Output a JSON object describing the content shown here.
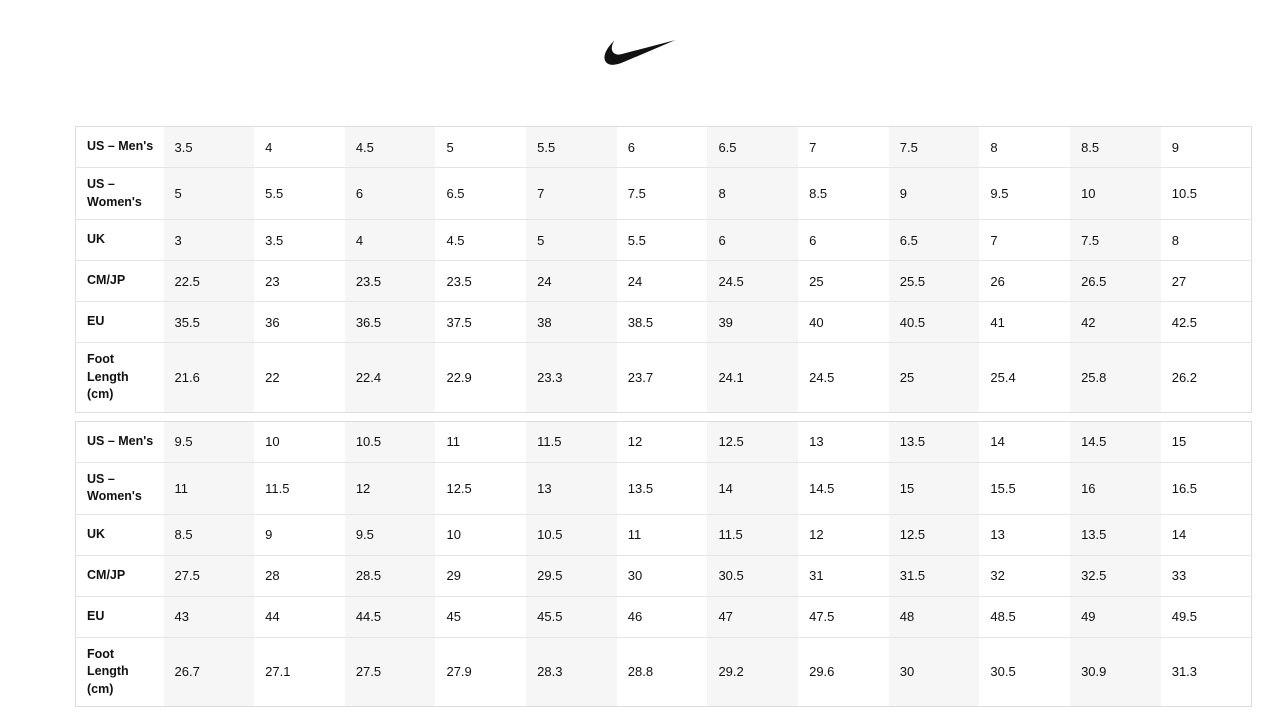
{
  "logo": {
    "icon": "nike-swoosh",
    "color": "#111111"
  },
  "colors": {
    "page_background": "#ffffff",
    "stripe": "#f6f6f6",
    "row_border": "#e5e5e5",
    "table_border": "#dddddd",
    "text": "#111111"
  },
  "tables": [
    {
      "rows": [
        {
          "label": "US – Men's",
          "values": [
            "3.5",
            "4",
            "4.5",
            "5",
            "5.5",
            "6",
            "6.5",
            "7",
            "7.5",
            "8",
            "8.5",
            "9"
          ]
        },
        {
          "label": "US – Women's",
          "values": [
            "5",
            "5.5",
            "6",
            "6.5",
            "7",
            "7.5",
            "8",
            "8.5",
            "9",
            "9.5",
            "10",
            "10.5"
          ]
        },
        {
          "label": "UK",
          "values": [
            "3",
            "3.5",
            "4",
            "4.5",
            "5",
            "5.5",
            "6",
            "6",
            "6.5",
            "7",
            "7.5",
            "8"
          ]
        },
        {
          "label": "CM/JP",
          "values": [
            "22.5",
            "23",
            "23.5",
            "23.5",
            "24",
            "24",
            "24.5",
            "25",
            "25.5",
            "26",
            "26.5",
            "27"
          ]
        },
        {
          "label": "EU",
          "values": [
            "35.5",
            "36",
            "36.5",
            "37.5",
            "38",
            "38.5",
            "39",
            "40",
            "40.5",
            "41",
            "42",
            "42.5"
          ]
        },
        {
          "label": "Foot Length (cm)",
          "values": [
            "21.6",
            "22",
            "22.4",
            "22.9",
            "23.3",
            "23.7",
            "24.1",
            "24.5",
            "25",
            "25.4",
            "25.8",
            "26.2"
          ]
        }
      ]
    },
    {
      "rows": [
        {
          "label": "US – Men's",
          "values": [
            "9.5",
            "10",
            "10.5",
            "11",
            "11.5",
            "12",
            "12.5",
            "13",
            "13.5",
            "14",
            "14.5",
            "15"
          ]
        },
        {
          "label": "US – Women's",
          "values": [
            "11",
            "11.5",
            "12",
            "12.5",
            "13",
            "13.5",
            "14",
            "14.5",
            "15",
            "15.5",
            "16",
            "16.5"
          ]
        },
        {
          "label": "UK",
          "values": [
            "8.5",
            "9",
            "9.5",
            "10",
            "10.5",
            "11",
            "11.5",
            "12",
            "12.5",
            "13",
            "13.5",
            "14"
          ]
        },
        {
          "label": "CM/JP",
          "values": [
            "27.5",
            "28",
            "28.5",
            "29",
            "29.5",
            "30",
            "30.5",
            "31",
            "31.5",
            "32",
            "32.5",
            "33"
          ]
        },
        {
          "label": "EU",
          "values": [
            "43",
            "44",
            "44.5",
            "45",
            "45.5",
            "46",
            "47",
            "47.5",
            "48",
            "48.5",
            "49",
            "49.5"
          ]
        },
        {
          "label": "Foot Length (cm)",
          "values": [
            "26.7",
            "27.1",
            "27.5",
            "27.9",
            "28.3",
            "28.8",
            "29.2",
            "29.6",
            "30",
            "30.5",
            "30.9",
            "31.3"
          ]
        }
      ]
    }
  ]
}
